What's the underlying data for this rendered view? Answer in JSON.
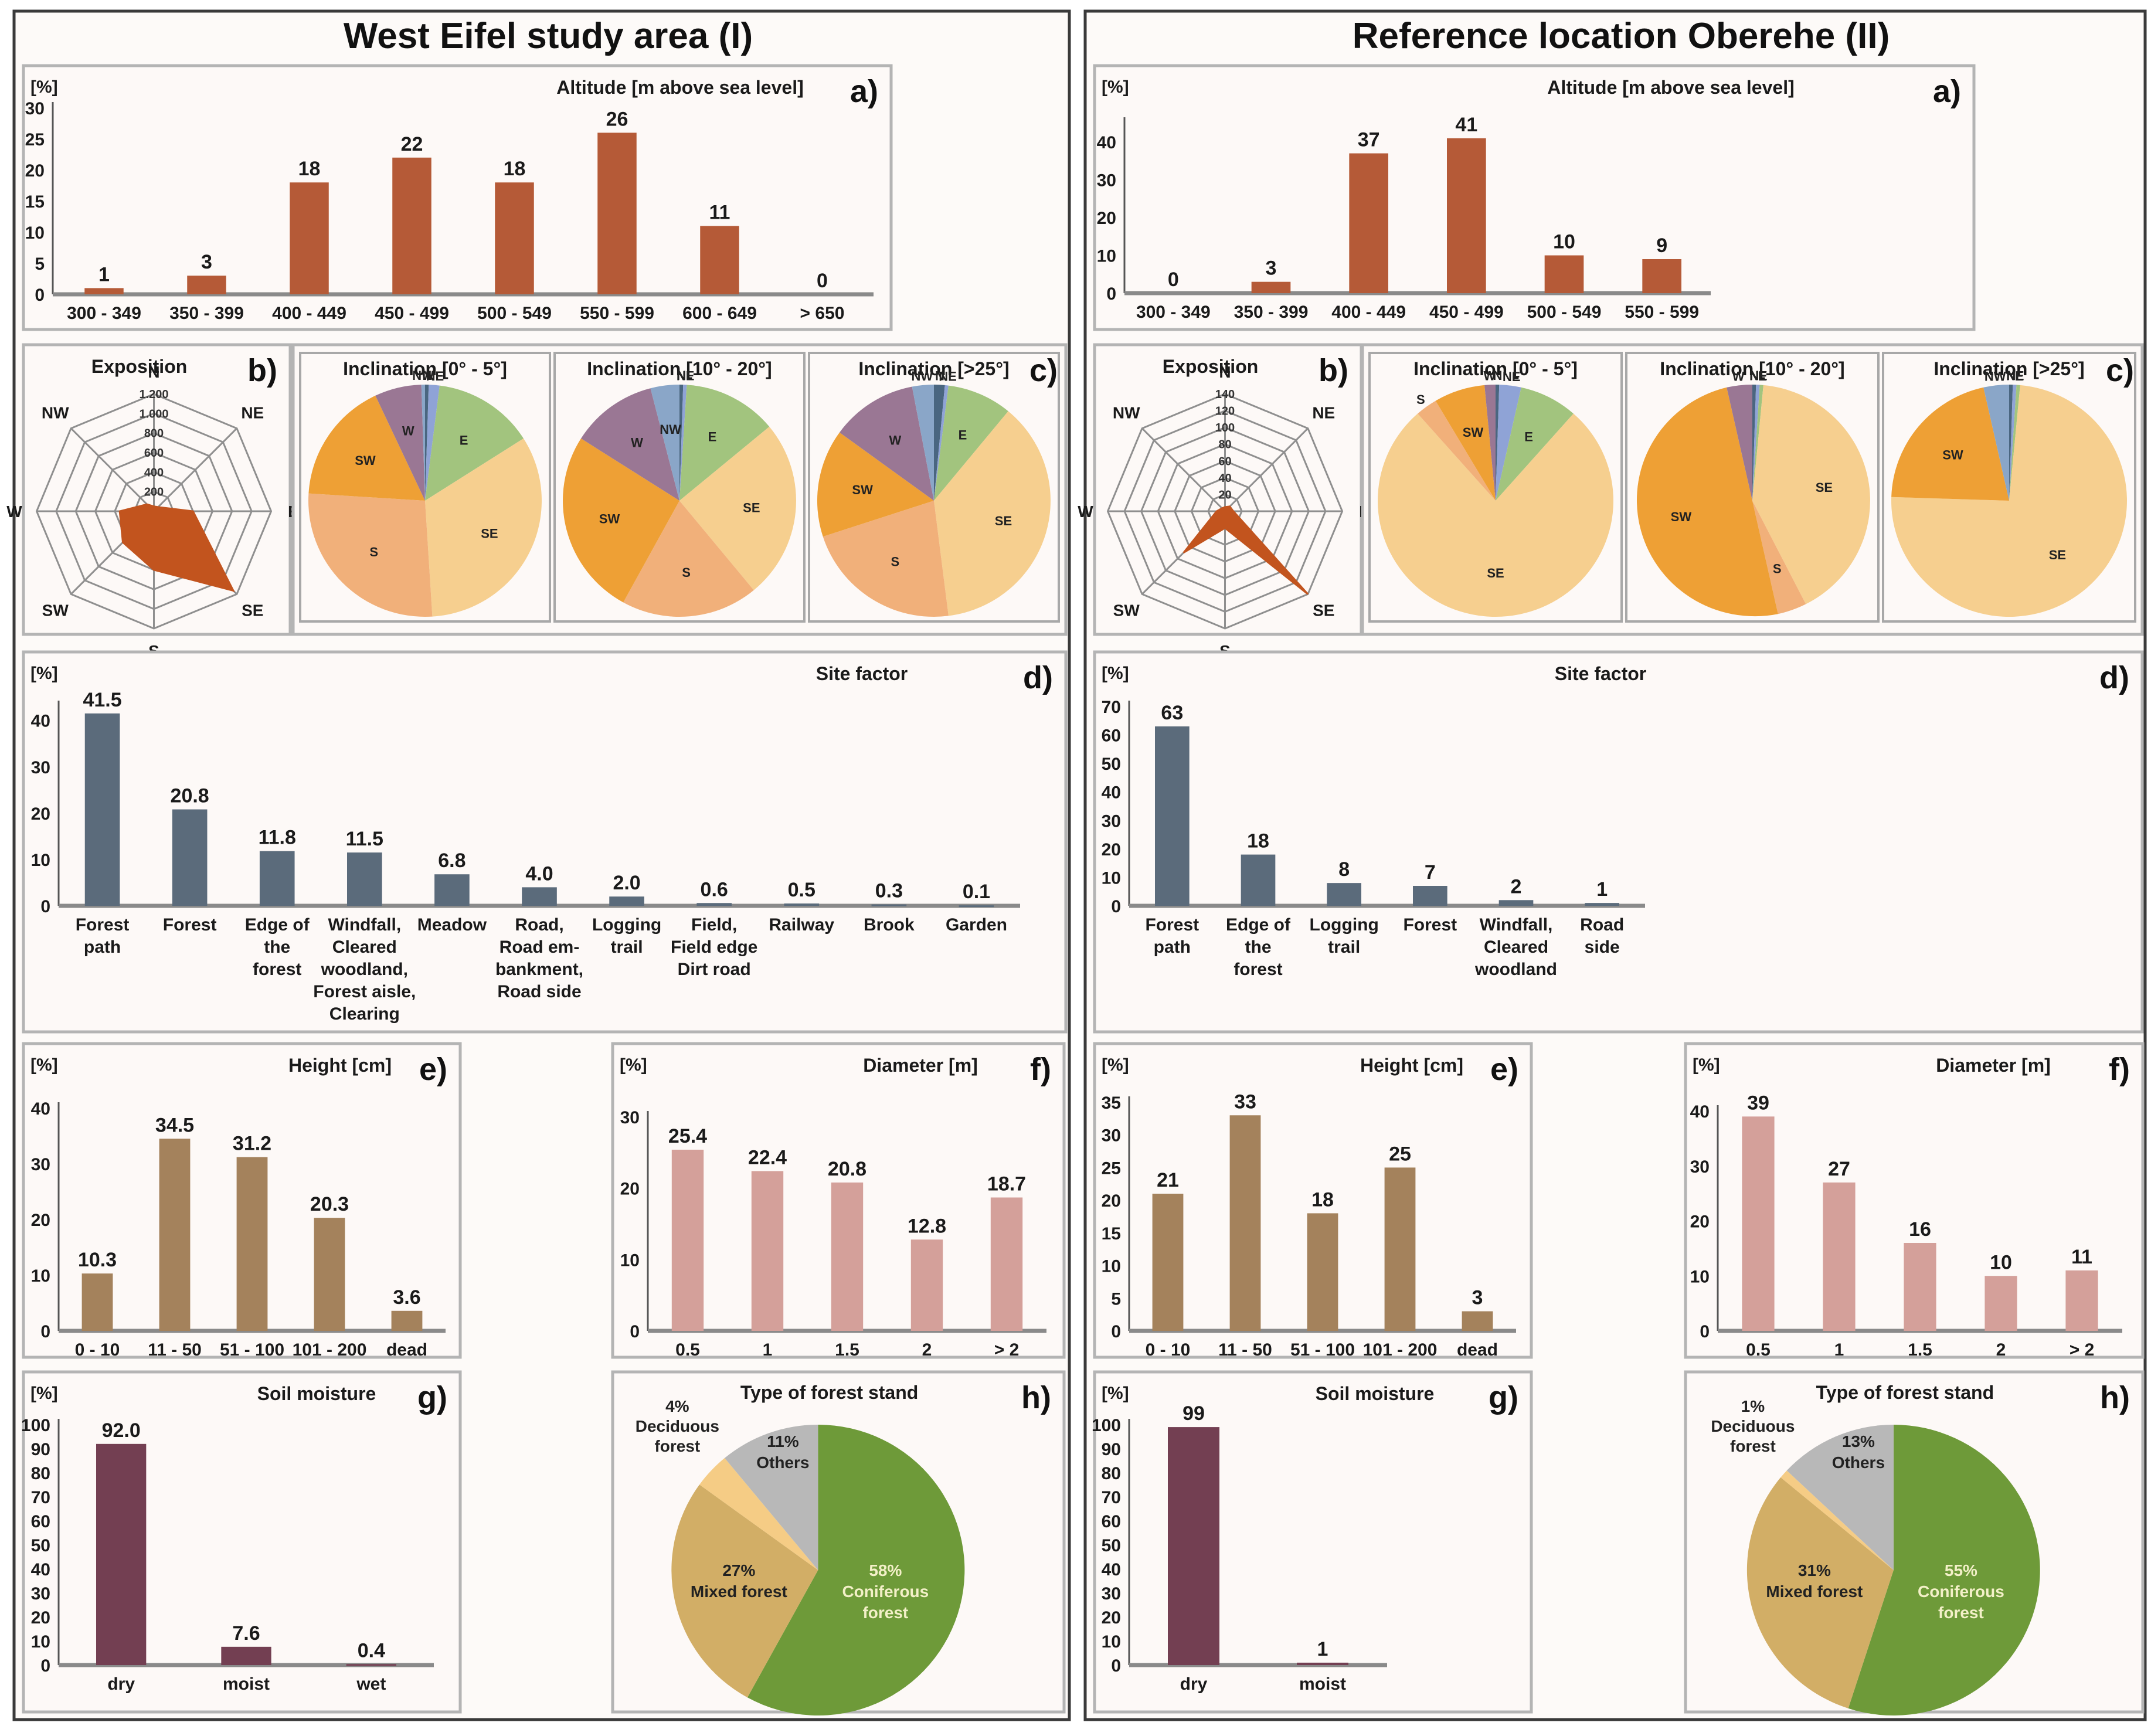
{
  "figure": {
    "sections": [
      {
        "id": "west-eifel",
        "title": "West Eifel study area (I)"
      },
      {
        "id": "oberehe",
        "title": "Reference location Oberehe (II)"
      }
    ],
    "unit_label": "[%]",
    "panel_letters": {
      "a": "a)",
      "b": "b)",
      "c": "c)",
      "d": "d)",
      "e": "e)",
      "f": "f)",
      "g": "g)",
      "h": "h)"
    },
    "colors": {
      "altitude": "#b55a37",
      "site_factor": "#5b6b7b",
      "height": "#a4825c",
      "diameter": "#d4a09a",
      "soil": "#733f52",
      "radar_fill": "#c2541e",
      "dir_N": "#4a6680",
      "dir_NE": "#8fa3d6",
      "dir_E": "#a2c47e",
      "dir_SE": "#f6cf8f",
      "dir_S": "#f1b07a",
      "dir_SW": "#eea035",
      "dir_W": "#9a7794",
      "dir_NW": "#8aa6c8",
      "coniferous": "#6e9a39",
      "mixed": "#d2ae66",
      "deciduous": "#f5cc85",
      "others": "#b8b8b8"
    }
  },
  "chart_data": [
    {
      "id": "I-a",
      "section": "West Eifel study area (I)",
      "panel": "a)",
      "type": "bar",
      "title": "Altitude [m above sea level]",
      "ylabel": "[%]",
      "categories": [
        "300 - 349",
        "350 - 399",
        "400 - 449",
        "450 - 499",
        "500 - 549",
        "550 - 599",
        "600 - 649",
        "> 650"
      ],
      "values": [
        1,
        3,
        18,
        22,
        18,
        26,
        11,
        0
      ],
      "value_labels": [
        "1",
        "3",
        "18",
        "22",
        "18",
        "26",
        "11",
        "0"
      ],
      "ylim": [
        0,
        30
      ],
      "yticks": [
        0,
        5,
        10,
        15,
        20,
        25,
        30
      ]
    },
    {
      "id": "I-b",
      "section": "West Eifel study area (I)",
      "panel": "b)",
      "type": "radar",
      "title": "Exposition",
      "categories": [
        "N",
        "NE",
        "E",
        "SE",
        "S",
        "SW",
        "W",
        "NW"
      ],
      "values": [
        50,
        60,
        400,
        1150,
        600,
        450,
        350,
        100
      ],
      "rlim": [
        0,
        1200
      ],
      "rticks": [
        "200",
        "400",
        "600",
        "800",
        "1.000",
        "1.200"
      ]
    },
    {
      "id": "I-c1",
      "section": "West Eifel study area (I)",
      "panel": "c)",
      "type": "pie",
      "title": "Inclination [0° - 5°]",
      "categories": [
        "N",
        "NE",
        "E",
        "SE",
        "S",
        "SW",
        "W",
        "NW"
      ],
      "values": [
        0.5,
        1.5,
        14,
        33,
        27,
        17,
        6.5,
        0.5
      ]
    },
    {
      "id": "I-c2",
      "section": "West Eifel study area (I)",
      "panel": "c)",
      "type": "pie",
      "title": "Inclination [10° - 20°]",
      "categories": [
        "N",
        "NE",
        "E",
        "SE",
        "S",
        "SW",
        "W",
        "NW"
      ],
      "values": [
        0.5,
        0.5,
        13,
        25,
        19,
        26,
        12,
        4
      ]
    },
    {
      "id": "I-c3",
      "section": "West Eifel study area (I)",
      "panel": "c)",
      "type": "pie",
      "title": "Inclination [>25°]",
      "categories": [
        "N",
        "NE",
        "E",
        "SE",
        "S",
        "SW",
        "W",
        "NW"
      ],
      "values": [
        1.5,
        0.5,
        9,
        37,
        22,
        15,
        12,
        3
      ]
    },
    {
      "id": "I-d",
      "section": "West Eifel study area (I)",
      "panel": "d)",
      "type": "bar",
      "title": "Site factor",
      "ylabel": "[%]",
      "categories": [
        "Forest path",
        "Forest",
        "Edge of the forest",
        "Windfall, Cleared woodland, Forest aisle, Clearing",
        "Meadow",
        "Road, Road em-bankment, Road side",
        "Logging trail",
        "Field, Field edge Dirt road",
        "Railway",
        "Brook",
        "Garden"
      ],
      "category_lines": [
        [
          "Forest",
          "path"
        ],
        [
          "Forest"
        ],
        [
          "Edge of",
          "the",
          "forest"
        ],
        [
          "Windfall,",
          "Cleared",
          "woodland,",
          "Forest aisle,",
          "Clearing"
        ],
        [
          "Meadow"
        ],
        [
          "Road,",
          "Road em-",
          "bankment,",
          "Road side"
        ],
        [
          "Logging",
          "trail"
        ],
        [
          "Field,",
          "Field edge",
          "Dirt road"
        ],
        [
          "Railway"
        ],
        [
          "Brook"
        ],
        [
          "Garden"
        ]
      ],
      "values": [
        41.5,
        20.8,
        11.8,
        11.5,
        6.8,
        4.0,
        2.0,
        0.6,
        0.5,
        0.3,
        0.1
      ],
      "value_labels": [
        "41.5",
        "20.8",
        "11.8",
        "11.5",
        "6.8",
        "4.0",
        "2.0",
        "0.6",
        "0.5",
        "0.3",
        "0.1"
      ],
      "ylim": [
        0,
        43
      ],
      "yticks": [
        0,
        10,
        20,
        30,
        40
      ]
    },
    {
      "id": "I-e",
      "section": "West Eifel study area (I)",
      "panel": "e)",
      "type": "bar",
      "title": "Height [cm]",
      "ylabel": "[%]",
      "categories": [
        "0 - 10",
        "11 - 50",
        "51 - 100",
        "101 - 200",
        "dead"
      ],
      "values": [
        10.3,
        34.5,
        31.2,
        20.3,
        3.6
      ],
      "value_labels": [
        "10.3",
        "34.5",
        "31.2",
        "20.3",
        "3.6"
      ],
      "ylim": [
        0,
        40
      ],
      "yticks": [
        0,
        10,
        20,
        30,
        40
      ]
    },
    {
      "id": "I-f",
      "section": "West Eifel study area (I)",
      "panel": "f)",
      "type": "bar",
      "title": "Diameter [m]",
      "ylabel": "[%]",
      "categories": [
        "0.5",
        "1",
        "1.5",
        "2",
        "> 2"
      ],
      "values": [
        25.4,
        22.4,
        20.8,
        12.8,
        18.7
      ],
      "value_labels": [
        "25.4",
        "22.4",
        "20.8",
        "12.8",
        "18.7"
      ],
      "ylim": [
        0,
        30
      ],
      "yticks": [
        0,
        10,
        20,
        30
      ]
    },
    {
      "id": "I-g",
      "section": "West Eifel study area (I)",
      "panel": "g)",
      "type": "bar",
      "title": "Soil moisture",
      "ylabel": "[%]",
      "categories": [
        "dry",
        "moist",
        "wet"
      ],
      "values": [
        92.0,
        7.6,
        0.4
      ],
      "value_labels": [
        "92.0",
        "7.6",
        "0.4"
      ],
      "ylim": [
        0,
        100
      ],
      "yticks": [
        0,
        10,
        20,
        30,
        40,
        50,
        60,
        70,
        80,
        90,
        100
      ]
    },
    {
      "id": "I-h",
      "section": "West Eifel study area (I)",
      "panel": "h)",
      "type": "pie",
      "title": "Type of forest stand",
      "categories": [
        "Coniferous forest",
        "Mixed forest",
        "Deciduous forest",
        "Others"
      ],
      "values": [
        58,
        27,
        4,
        11
      ],
      "slice_labels": [
        [
          "58%",
          "Coniferous",
          "forest"
        ],
        [
          "27%",
          "Mixed forest"
        ],
        [
          "4%",
          "Deciduous",
          "forest"
        ],
        [
          "11%",
          "Others"
        ]
      ]
    },
    {
      "id": "II-a",
      "section": "Reference location Oberehe (II)",
      "panel": "a)",
      "type": "bar",
      "title": "Altitude [m above sea level]",
      "ylabel": "[%]",
      "categories": [
        "300 - 349",
        "350 - 399",
        "400 - 449",
        "450 - 499",
        "500 - 549",
        "550 - 599"
      ],
      "values": [
        0,
        3,
        37,
        41,
        10,
        9
      ],
      "value_labels": [
        "0",
        "3",
        "37",
        "41",
        "10",
        "9"
      ],
      "ylim": [
        0,
        45
      ],
      "yticks": [
        0,
        10,
        20,
        30,
        40
      ]
    },
    {
      "id": "II-b",
      "section": "Reference location Oberehe (II)",
      "panel": "b)",
      "type": "radar",
      "title": "Exposition",
      "categories": [
        "N",
        "NE",
        "E",
        "SE",
        "S",
        "SW",
        "W",
        "NW"
      ],
      "values": [
        5,
        8,
        10,
        140,
        20,
        70,
        10,
        5
      ],
      "rlim": [
        0,
        140
      ],
      "rticks": [
        "20",
        "40",
        "60",
        "80",
        "100",
        "120",
        "140"
      ]
    },
    {
      "id": "II-c1",
      "section": "Reference location Oberehe (II)",
      "panel": "c)",
      "type": "pie",
      "title": "Inclination [0° - 5°]",
      "categories": [
        "N",
        "NE",
        "E",
        "SE",
        "S",
        "SW",
        "W",
        "NW"
      ],
      "values": [
        0.5,
        3,
        8,
        77,
        3,
        7,
        1.5,
        0
      ]
    },
    {
      "id": "II-c2",
      "section": "Reference location Oberehe (II)",
      "panel": "c)",
      "type": "pie",
      "title": "Inclination [10° - 20°]",
      "categories": [
        "N",
        "NE",
        "E",
        "SE",
        "S",
        "SW",
        "W",
        "NW"
      ],
      "values": [
        0.5,
        0.5,
        0.5,
        41,
        4,
        50,
        3.5,
        0
      ]
    },
    {
      "id": "II-c3",
      "section": "Reference location Oberehe (II)",
      "panel": "c)",
      "type": "pie",
      "title": "Inclination [>25°]",
      "categories": [
        "N",
        "NE",
        "E",
        "SE",
        "S",
        "SW",
        "W",
        "NW"
      ],
      "values": [
        0.5,
        0.5,
        0.5,
        74,
        0,
        21,
        0,
        3.5
      ]
    },
    {
      "id": "II-d",
      "section": "Reference location Oberehe (II)",
      "panel": "d)",
      "type": "bar",
      "title": "Site factor",
      "ylabel": "[%]",
      "categories": [
        "Forest path",
        "Edge of the forest",
        "Logging trail",
        "Forest",
        "Windfall, Cleared woodland",
        "Road side"
      ],
      "category_lines": [
        [
          "Forest",
          "path"
        ],
        [
          "Edge of",
          "the",
          "forest"
        ],
        [
          "Logging",
          "trail"
        ],
        [
          "Forest"
        ],
        [
          "Windfall,",
          "Cleared",
          "woodland"
        ],
        [
          "Road",
          "side"
        ]
      ],
      "values": [
        63,
        18,
        8,
        7,
        2,
        1
      ],
      "value_labels": [
        "63",
        "18",
        "8",
        "7",
        "2",
        "1"
      ],
      "ylim": [
        0,
        70
      ],
      "yticks": [
        0,
        10,
        20,
        30,
        40,
        50,
        60,
        70
      ]
    },
    {
      "id": "II-e",
      "section": "Reference location Oberehe (II)",
      "panel": "e)",
      "type": "bar",
      "title": "Height [cm]",
      "ylabel": "[%]",
      "categories": [
        "0 - 10",
        "11 - 50",
        "51 - 100",
        "101 - 200",
        "dead"
      ],
      "values": [
        21,
        33,
        18,
        25,
        3
      ],
      "value_labels": [
        "21",
        "33",
        "18",
        "25",
        "3"
      ],
      "ylim": [
        0,
        35
      ],
      "yticks": [
        0,
        5,
        10,
        15,
        20,
        25,
        30,
        35
      ]
    },
    {
      "id": "II-f",
      "section": "Reference location Oberehe (II)",
      "panel": "f)",
      "type": "bar",
      "title": "Diameter [m]",
      "ylabel": "[%]",
      "categories": [
        "0.5",
        "1",
        "1.5",
        "2",
        "> 2"
      ],
      "values": [
        39,
        27,
        16,
        10,
        11
      ],
      "value_labels": [
        "39",
        "27",
        "16",
        "10",
        "11"
      ],
      "ylim": [
        0,
        40
      ],
      "yticks": [
        0,
        10,
        20,
        30,
        40
      ]
    },
    {
      "id": "II-g",
      "section": "Reference location Oberehe (II)",
      "panel": "g)",
      "type": "bar",
      "title": "Soil moisture",
      "ylabel": "[%]",
      "categories": [
        "dry",
        "moist"
      ],
      "values": [
        99,
        1
      ],
      "value_labels": [
        "99",
        "1"
      ],
      "ylim": [
        0,
        100
      ],
      "yticks": [
        0,
        10,
        20,
        30,
        40,
        50,
        60,
        70,
        80,
        90,
        100
      ]
    },
    {
      "id": "II-h",
      "section": "Reference location Oberehe (II)",
      "panel": "h)",
      "type": "pie",
      "title": "Type of forest stand",
      "categories": [
        "Coniferous forest",
        "Mixed forest",
        "Deciduous forest",
        "Others"
      ],
      "values": [
        55,
        31,
        1,
        13
      ],
      "slice_labels": [
        [
          "55%",
          "Coniferous",
          "forest"
        ],
        [
          "31%",
          "Mixed forest"
        ],
        [
          "1%",
          "Deciduous",
          "forest"
        ],
        [
          "13%",
          "Others"
        ]
      ]
    }
  ]
}
